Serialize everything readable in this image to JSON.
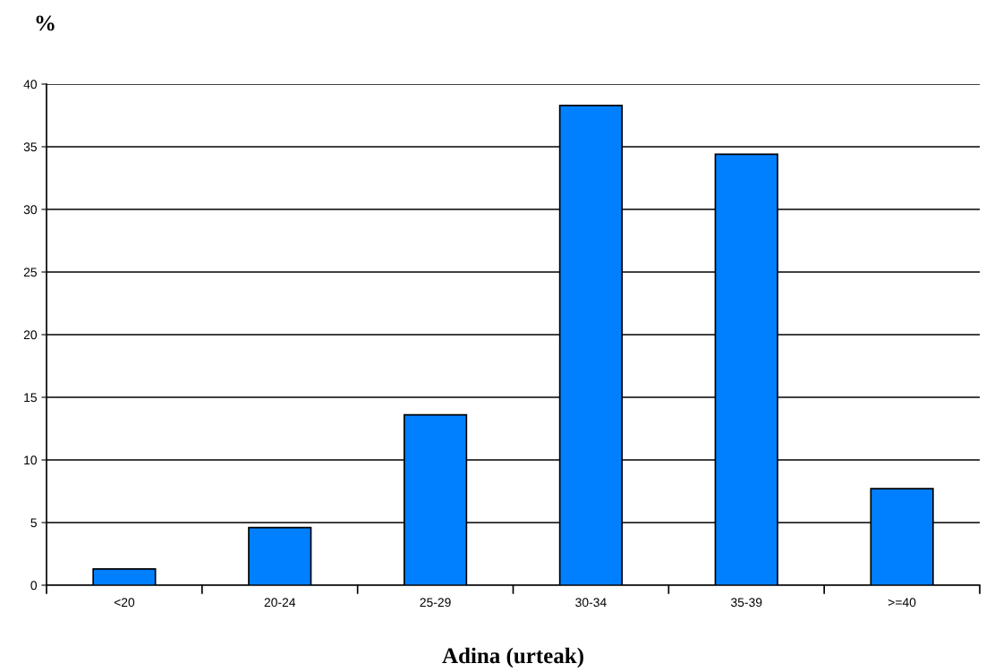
{
  "chart_data": {
    "type": "bar",
    "ylabel": "%",
    "xlabel": "Adina (urteak)",
    "categories": [
      "<20",
      "20-24",
      "25-29",
      "30-34",
      "35-39",
      ">=40"
    ],
    "values": [
      1.3,
      4.6,
      13.6,
      38.3,
      34.4,
      7.7
    ],
    "color": "#0080ff",
    "ylim": [
      0,
      40
    ],
    "yticks": [
      0,
      5,
      10,
      15,
      20,
      25,
      30,
      35,
      40
    ],
    "grid": "y"
  }
}
